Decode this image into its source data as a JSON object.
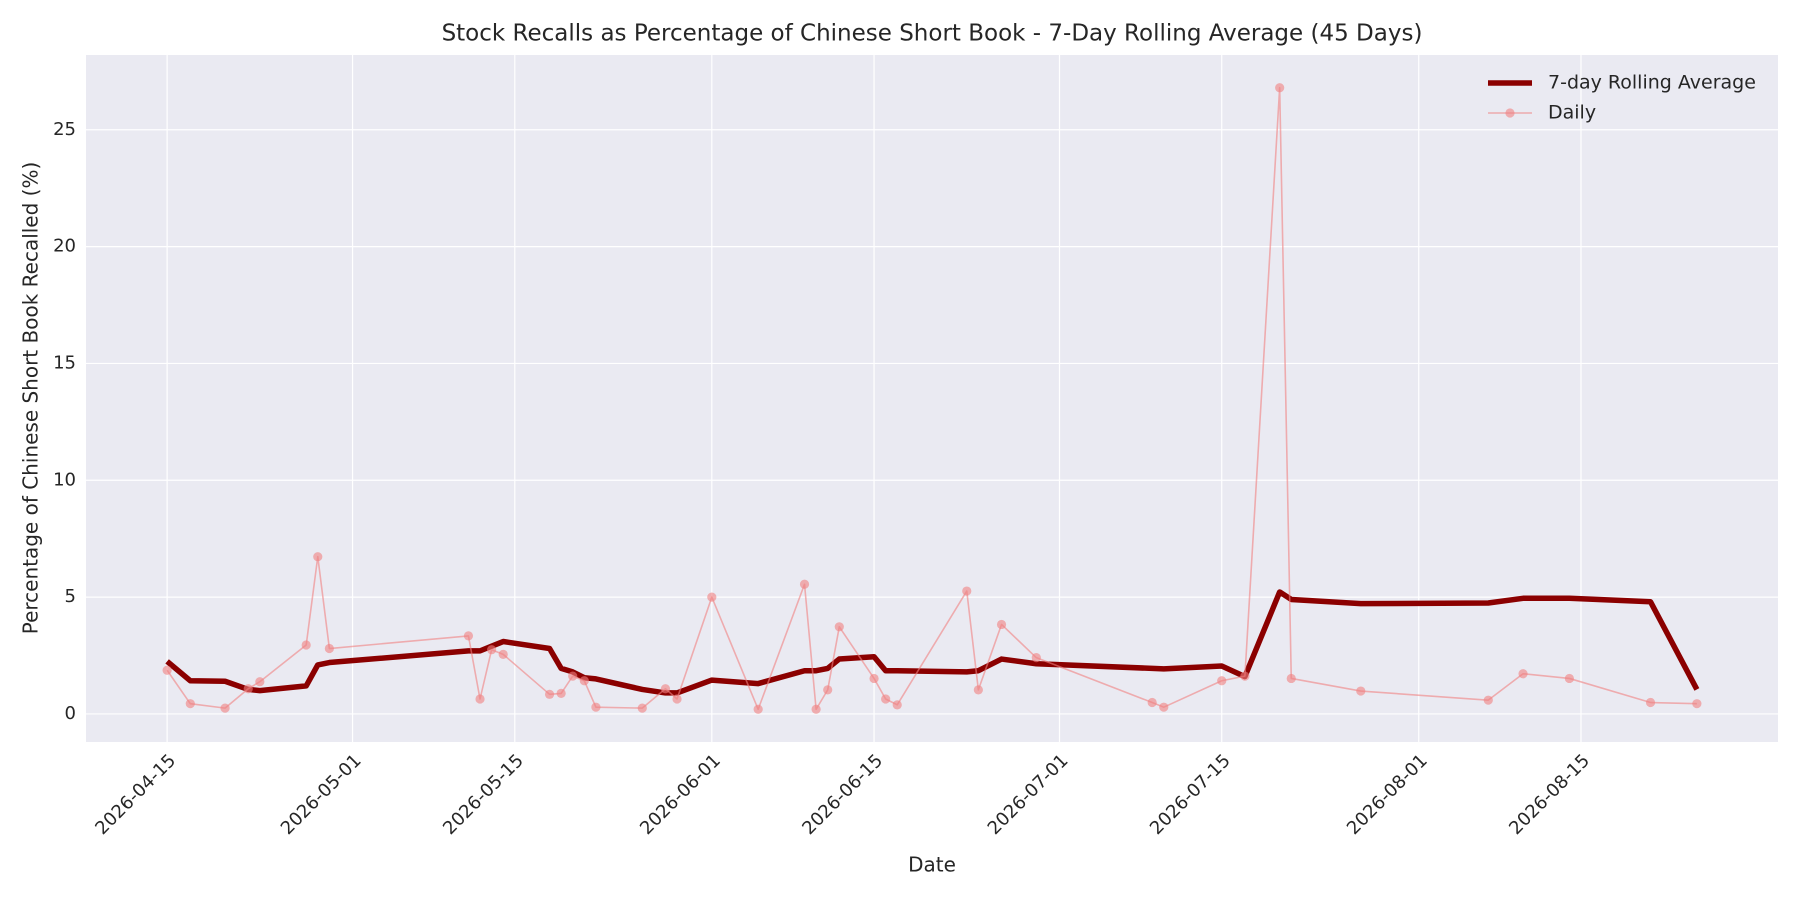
{
  "chart_data": {
    "type": "line",
    "title": "Stock Recalls as Percentage of Chinese Short Book - 7-Day Rolling Average (45 Days)",
    "x_label": "Date",
    "y_label": "Percentage of Chinese Short Book Recalled (%)",
    "x": [
      "2026-04-15",
      "2026-04-17",
      "2026-04-20",
      "2026-04-22",
      "2026-04-23",
      "2026-04-27",
      "2026-04-28",
      "2026-04-29",
      "2026-05-11",
      "2026-05-12",
      "2026-05-13",
      "2026-05-14",
      "2026-05-18",
      "2026-05-19",
      "2026-05-20",
      "2026-05-21",
      "2026-05-22",
      "2026-05-26",
      "2026-05-28",
      "2026-05-29",
      "2026-06-01",
      "2026-06-05",
      "2026-06-09",
      "2026-06-10",
      "2026-06-11",
      "2026-06-12",
      "2026-06-15",
      "2026-06-16",
      "2026-06-17",
      "2026-06-23",
      "2026-06-24",
      "2026-06-26",
      "2026-06-29",
      "2026-07-09",
      "2026-07-10",
      "2026-07-15",
      "2026-07-17",
      "2026-07-20",
      "2026-07-21",
      "2026-07-27",
      "2026-08-07",
      "2026-08-10",
      "2026-08-14",
      "2026-08-21",
      "2026-08-25"
    ],
    "series": [
      {
        "name": "7-day Rolling Average",
        "color": "#8b0000",
        "marker": false,
        "values": [
          2.25,
          1.42,
          1.4,
          1.05,
          1.0,
          1.2,
          2.1,
          2.2,
          2.7,
          2.7,
          2.9,
          3.1,
          2.8,
          1.95,
          1.8,
          1.55,
          1.5,
          1.05,
          0.9,
          0.9,
          1.45,
          1.3,
          1.85,
          1.85,
          1.95,
          2.35,
          2.45,
          1.85,
          1.85,
          1.8,
          1.85,
          2.35,
          2.15,
          1.95,
          1.93,
          2.05,
          1.6,
          5.22,
          4.9,
          4.72,
          4.75,
          4.95,
          4.95,
          4.8,
          1.05
        ]
      },
      {
        "name": "Daily",
        "color": "#f08080",
        "marker": true,
        "values": [
          1.87,
          0.44,
          0.25,
          1.08,
          1.38,
          2.95,
          6.73,
          2.8,
          3.34,
          0.64,
          2.75,
          2.55,
          0.84,
          0.88,
          1.62,
          1.42,
          0.29,
          0.25,
          1.08,
          0.64,
          5.0,
          0.2,
          5.55,
          0.2,
          1.03,
          3.73,
          1.52,
          0.64,
          0.39,
          5.26,
          1.03,
          3.83,
          2.41,
          0.49,
          0.29,
          1.42,
          1.62,
          26.8,
          1.52,
          0.98,
          0.59,
          1.72,
          1.52,
          0.49,
          0.44
        ]
      }
    ],
    "xlim": [
      "2026-04-08",
      "2026-09-01"
    ],
    "xticks": [
      "2026-04-15",
      "2026-05-01",
      "2026-05-15",
      "2026-06-01",
      "2026-06-15",
      "2026-07-01",
      "2026-07-15",
      "2026-08-01",
      "2026-08-15"
    ],
    "ylim": [
      -1.2,
      28.2
    ],
    "yticks": [
      0,
      5,
      10,
      15,
      20,
      25
    ],
    "grid": true,
    "legend": "upper right"
  }
}
